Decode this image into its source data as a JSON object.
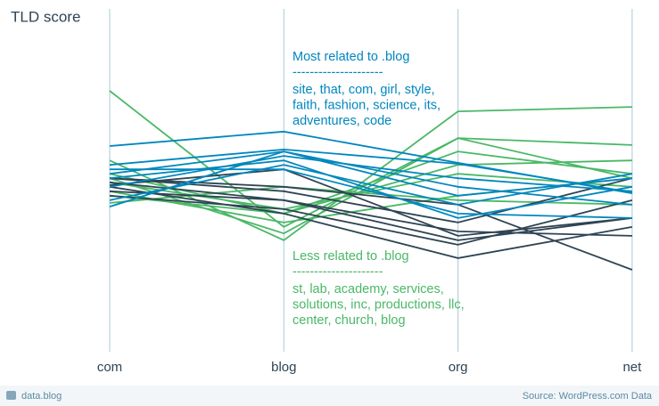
{
  "chart_data": {
    "type": "parallel",
    "title": "TLD score",
    "categories": [
      "com",
      "blog",
      "org",
      "net"
    ],
    "ylim": [
      0,
      100
    ],
    "series": [
      {
        "color": "#4ab866",
        "values": [
          76.1,
          36.4,
          62.3,
          50.6
        ]
      },
      {
        "color": "#4ab866",
        "values": [
          55.8,
          32.5,
          70.1,
          71.4
        ]
      },
      {
        "color": "#4ab866",
        "values": [
          50.6,
          34.5,
          62.3,
          60.3
        ]
      },
      {
        "color": "#4ab866",
        "values": [
          45.5,
          40.3,
          54.5,
          55.8
        ]
      },
      {
        "color": "#4ab866",
        "values": [
          49.4,
          41.6,
          51.9,
          48.1
        ]
      },
      {
        "color": "#4ab866",
        "values": [
          46.8,
          37.7,
          45.5,
          50.6
        ]
      },
      {
        "color": "#4ab866",
        "values": [
          43.4,
          48.1,
          44.2,
          42.9
        ]
      },
      {
        "color": "#4ab866",
        "values": [
          51.9,
          40.3,
          58.4,
          51.9
        ]
      },
      {
        "color": "#2e4453",
        "values": [
          50.6,
          48.1,
          42.9,
          23.9
        ]
      },
      {
        "color": "#2e4453",
        "values": [
          49.4,
          44.2,
          32.5,
          39.0
        ]
      },
      {
        "color": "#2e4453",
        "values": [
          48.1,
          40.3,
          27.3,
          36.4
        ]
      },
      {
        "color": "#2e4453",
        "values": [
          46.8,
          44.2,
          35.1,
          33.8
        ]
      },
      {
        "color": "#2e4453",
        "values": [
          50.6,
          46.8,
          37.7,
          50.6
        ]
      },
      {
        "color": "#2e4453",
        "values": [
          45.5,
          41.6,
          31.2,
          44.2
        ]
      },
      {
        "color": "#2e4453",
        "values": [
          48.6,
          53.2,
          33.8,
          39.0
        ]
      },
      {
        "color": "#0087be",
        "values": [
          60.0,
          64.2,
          55.1,
          46.2
        ]
      },
      {
        "color": "#0087be",
        "values": [
          54.5,
          59.0,
          54.8,
          46.5
        ]
      },
      {
        "color": "#0087be",
        "values": [
          51.9,
          58.4,
          48.1,
          42.9
        ]
      },
      {
        "color": "#0087be",
        "values": [
          42.3,
          58.4,
          45.5,
          50.6
        ]
      },
      {
        "color": "#0087be",
        "values": [
          50.6,
          55.8,
          39.0,
          48.1
        ]
      },
      {
        "color": "#0087be",
        "values": [
          44.2,
          54.5,
          42.9,
          51.9
        ]
      },
      {
        "color": "#0087be",
        "values": [
          53.2,
          53.2,
          40.3,
          39.0
        ]
      },
      {
        "color": "#0087be",
        "values": [
          48.1,
          57.1,
          50.6,
          46.8
        ]
      }
    ],
    "annotations": [
      {
        "color": "#0087be",
        "lines": [
          "Most related to .blog",
          "---------------------",
          "site, that, com, girl, style,",
          "faith, fashion, science, its,",
          "adventures, code"
        ]
      },
      {
        "color": "#4ab866",
        "lines": [
          "Less related to .blog",
          "---------------------",
          "st, lab, academy, services,",
          "solutions, inc, productions, llc,",
          "center, church, blog"
        ]
      }
    ]
  },
  "footer": {
    "left": "data.blog",
    "right": "Source: WordPress.com Data"
  }
}
